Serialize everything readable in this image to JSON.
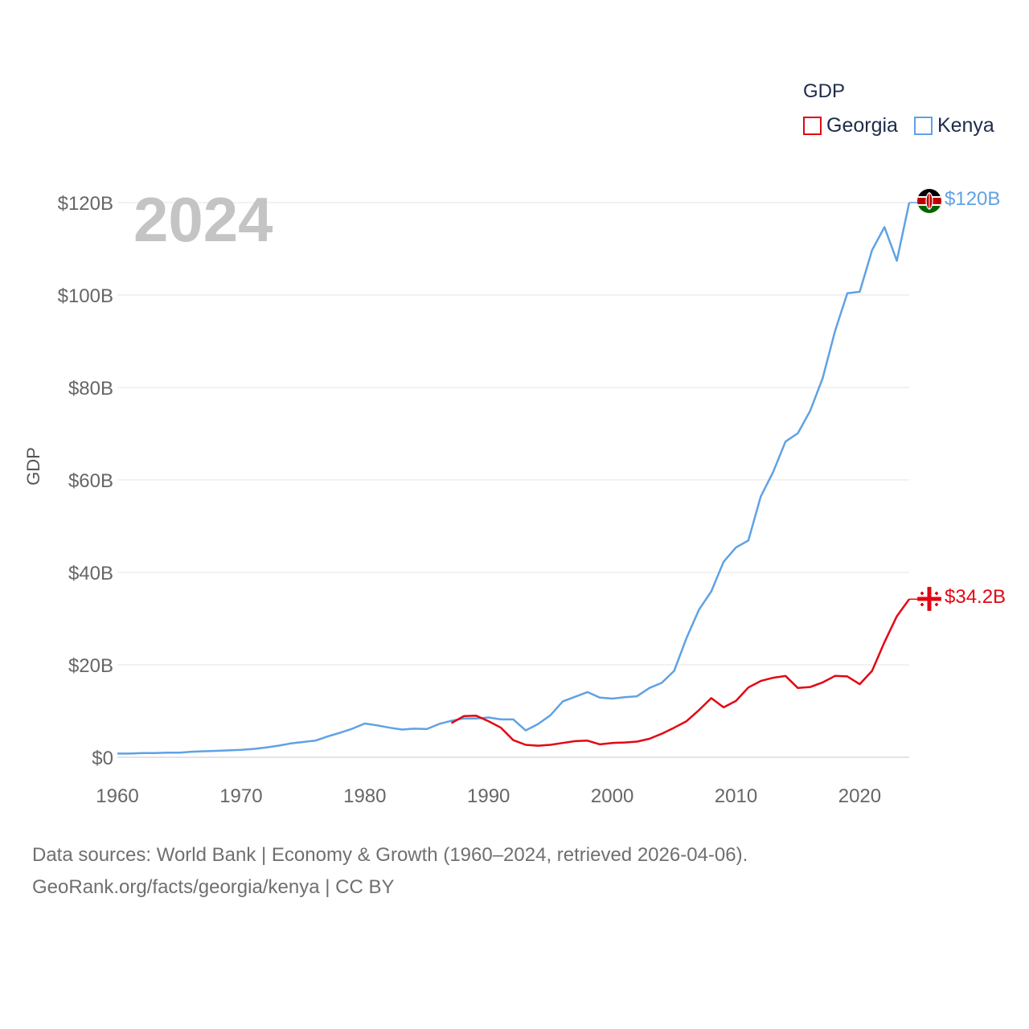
{
  "legend": {
    "title": "GDP",
    "items": [
      {
        "label": "Georgia",
        "color": "#e30613"
      },
      {
        "label": "Kenya",
        "color": "#5fa2e4"
      }
    ]
  },
  "year_label": "2024",
  "end_labels": {
    "kenya": "$120B",
    "georgia": "$34.2B"
  },
  "flags": {
    "kenya": "kenya-flag-icon",
    "georgia": "georgia-flag-icon"
  },
  "source": {
    "line1": "Data sources: World Bank | Economy & Growth (1960–2024, retrieved 2026-04-06).",
    "line2": "GeoRank.org/facts/georgia/kenya | CC BY"
  },
  "chart_data": {
    "type": "line",
    "title": "",
    "xlabel": "",
    "ylabel": "GDP",
    "xlim": [
      1960,
      2024
    ],
    "ylim": [
      0,
      120
    ],
    "x_ticks": [
      1960,
      1970,
      1980,
      1990,
      2000,
      2010,
      2020
    ],
    "x_tick_labels": [
      "1960",
      "1970",
      "1980",
      "1990",
      "2000",
      "2010",
      "2020"
    ],
    "y_ticks": [
      0,
      20,
      40,
      60,
      80,
      100,
      120
    ],
    "y_tick_labels": [
      "$0",
      "$20B",
      "$40B",
      "$60B",
      "$80B",
      "$100B",
      "$120B"
    ],
    "grid": true,
    "legend_position": "top-right",
    "series": [
      {
        "name": "Kenya",
        "color": "#5fa2e4",
        "x": [
          1960,
          1961,
          1962,
          1963,
          1964,
          1965,
          1966,
          1967,
          1968,
          1969,
          1970,
          1971,
          1972,
          1973,
          1974,
          1975,
          1976,
          1977,
          1978,
          1979,
          1980,
          1981,
          1982,
          1983,
          1984,
          1985,
          1986,
          1987,
          1988,
          1989,
          1990,
          1991,
          1992,
          1993,
          1994,
          1995,
          1996,
          1997,
          1998,
          1999,
          2000,
          2001,
          2002,
          2003,
          2004,
          2005,
          2006,
          2007,
          2008,
          2009,
          2010,
          2011,
          2012,
          2013,
          2014,
          2015,
          2016,
          2017,
          2018,
          2019,
          2020,
          2021,
          2022,
          2023,
          2024
        ],
        "values": [
          0.8,
          0.8,
          0.9,
          0.9,
          1.0,
          1.0,
          1.2,
          1.3,
          1.4,
          1.5,
          1.6,
          1.8,
          2.1,
          2.5,
          3.0,
          3.3,
          3.6,
          4.5,
          5.3,
          6.2,
          7.3,
          6.9,
          6.4,
          6.0,
          6.2,
          6.1,
          7.2,
          7.9,
          8.4,
          8.4,
          8.6,
          8.2,
          8.2,
          5.8,
          7.2,
          9.1,
          12.1,
          13.1,
          14.1,
          12.9,
          12.7,
          13.0,
          13.2,
          15.0,
          16.1,
          18.7,
          25.8,
          31.9,
          35.9,
          42.3,
          45.4,
          46.9,
          56.4,
          61.7,
          68.3,
          70.1,
          75.0,
          82.0,
          92.2,
          100.4,
          100.7,
          109.7,
          114.7,
          107.4,
          120.0
        ]
      },
      {
        "name": "Georgia",
        "color": "#e30613",
        "x": [
          1987,
          1988,
          1989,
          1990,
          1991,
          1992,
          1993,
          1994,
          1995,
          1996,
          1997,
          1998,
          1999,
          2000,
          2001,
          2002,
          2003,
          2004,
          2005,
          2006,
          2007,
          2008,
          2009,
          2010,
          2011,
          2012,
          2013,
          2014,
          2015,
          2016,
          2017,
          2018,
          2019,
          2020,
          2021,
          2022,
          2023,
          2024
        ],
        "values": [
          7.4,
          8.9,
          9.0,
          7.8,
          6.4,
          3.7,
          2.7,
          2.5,
          2.7,
          3.1,
          3.5,
          3.6,
          2.8,
          3.1,
          3.2,
          3.4,
          4.0,
          5.1,
          6.4,
          7.8,
          10.2,
          12.8,
          10.8,
          12.2,
          15.1,
          16.5,
          17.2,
          17.6,
          15.0,
          15.2,
          16.2,
          17.6,
          17.5,
          15.8,
          18.7,
          24.9,
          30.5,
          34.2
        ]
      }
    ]
  }
}
